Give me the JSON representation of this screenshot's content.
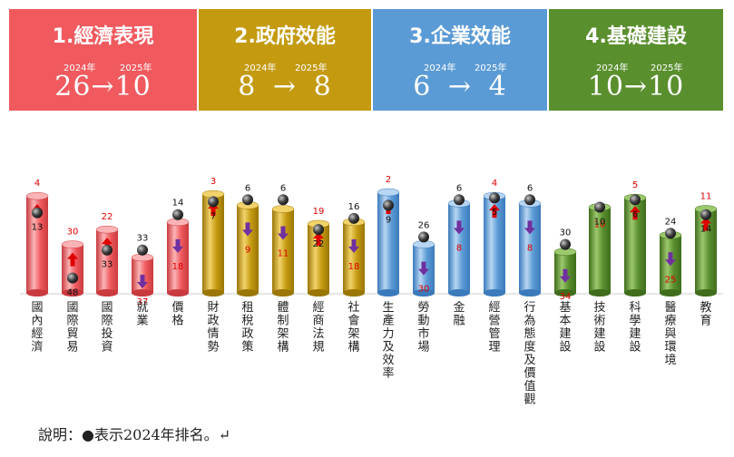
{
  "colors": {
    "panel_economy": "#f05a5e",
    "panel_government": "#c49a10",
    "panel_business": "#5b9bd5",
    "panel_infrastructure": "#5a8f2e",
    "up_arrow": "#e00000",
    "down_arrow": "#7030a0",
    "dot": "#404040"
  },
  "panels": [
    {
      "title": "1.經濟表現",
      "year_from": "2024年",
      "year_to": "2025年",
      "rank_from": "26",
      "arrow": "→",
      "rank_to": "10"
    },
    {
      "title": "2.政府效能",
      "year_from": "2024年",
      "year_to": "2025年",
      "rank_from": "8",
      "arrow": "→",
      "rank_to": "8"
    },
    {
      "title": "3.企業效能",
      "year_from": "2024年",
      "year_to": "2025年",
      "rank_from": "6",
      "arrow": "→",
      "rank_to": "4"
    },
    {
      "title": "4.基礎建設",
      "year_from": "2024年",
      "year_to": "2025年",
      "rank_from": "10",
      "arrow": "→",
      "rank_to": "10"
    }
  ],
  "chart_data": {
    "type": "bar",
    "grid": false,
    "legend": "none",
    "note": "Bar height reflects 2025 ranking (lower rank number = taller bar); dot marks 2024 ranking.",
    "categories": [
      "國內經濟",
      "國際貿易",
      "國際投資",
      "就業",
      "價格",
      "財政情勢",
      "租稅政策",
      "體制架構",
      "經商法規",
      "社會架構",
      "生產力及效率",
      "勞動市場",
      "金融",
      "經營管理",
      "行為態度及價值觀",
      "基本建設",
      "技術建設",
      "科學建設",
      "醫療與環境",
      "教育"
    ],
    "groups": [
      0,
      0,
      0,
      0,
      0,
      1,
      1,
      1,
      1,
      1,
      2,
      2,
      2,
      2,
      2,
      3,
      3,
      3,
      3,
      3
    ],
    "rank_2024": [
      13,
      48,
      33,
      33,
      14,
      7,
      6,
      6,
      22,
      16,
      9,
      26,
      6,
      5,
      6,
      30,
      10,
      6,
      24,
      14
    ],
    "rank_2025": [
      4,
      30,
      22,
      37,
      18,
      3,
      9,
      11,
      19,
      18,
      2,
      30,
      8,
      4,
      8,
      34,
      10,
      5,
      25,
      11
    ],
    "change": [
      "up",
      "up",
      "up",
      "down",
      "down",
      "up",
      "down",
      "down",
      "up",
      "down",
      "up",
      "down",
      "down",
      "up",
      "down",
      "down",
      "none",
      "up",
      "down",
      "up"
    ]
  },
  "caption": "說明：●表示2024年排名。↵"
}
